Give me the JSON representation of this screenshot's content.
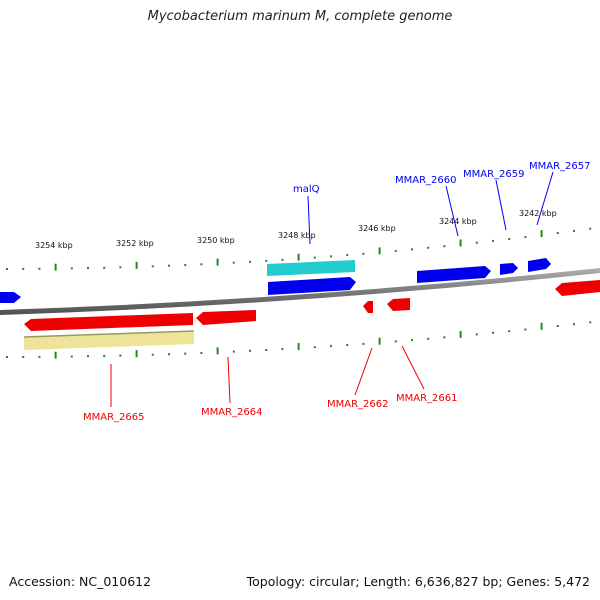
{
  "title": "Mycobacterium marinum M, complete genome",
  "footer": {
    "accession": "Accession: NC_010612",
    "summary": "Topology: circular; Length: 6,636,827 bp; Genes: 5,472"
  },
  "colors": {
    "forward_gene": "#0000ee",
    "reverse_gene": "#ee0000",
    "rna_gene": "#22cccc",
    "pseudo_gene": "#eee499",
    "tick": "#228822",
    "backbone": "#808080"
  },
  "scale_labels": [
    "3254 kbp",
    "3252 kbp",
    "3250 kbp",
    "3248 kbp",
    "3246 kbp",
    "3244 kbp",
    "3242 kbp"
  ],
  "gene_labels": {
    "malQ": "malQ",
    "mmar2660": "MMAR_2660",
    "mmar2659": "MMAR_2659",
    "mmar2657": "MMAR_2657",
    "mmar2665": "MMAR_2665",
    "mmar2664": "MMAR_2664",
    "mmar2662": "MMAR_2662",
    "mmar2661": "MMAR_2661"
  }
}
